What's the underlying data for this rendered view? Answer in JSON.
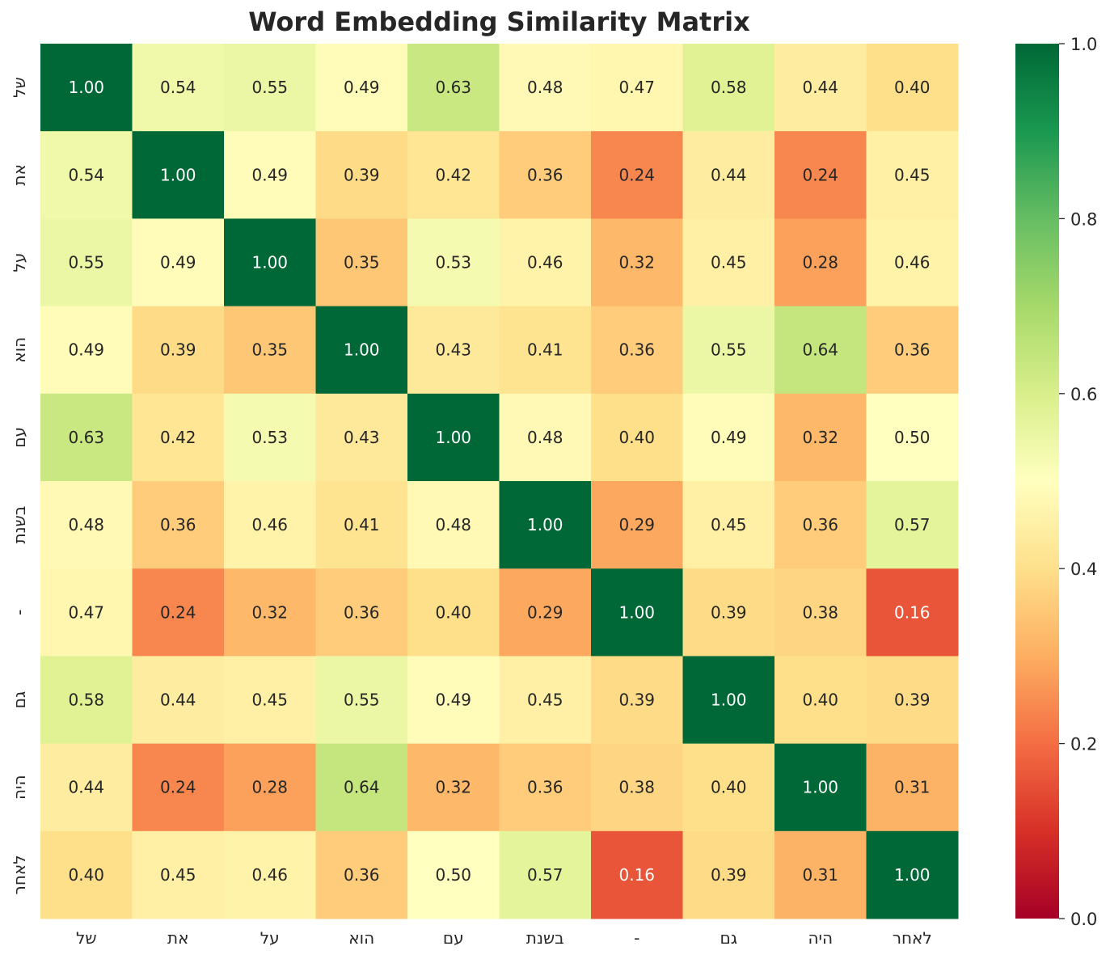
{
  "chart_data": {
    "type": "heatmap",
    "title": "Word Embedding Similarity Matrix",
    "labels": [
      "של",
      "את",
      "על",
      "הוא",
      "עם",
      "בשנת",
      "-",
      "גם",
      "היה",
      "לאחר"
    ],
    "matrix": [
      [
        1.0,
        0.54,
        0.55,
        0.49,
        0.63,
        0.48,
        0.47,
        0.58,
        0.44,
        0.4
      ],
      [
        0.54,
        1.0,
        0.49,
        0.39,
        0.42,
        0.36,
        0.24,
        0.44,
        0.24,
        0.45
      ],
      [
        0.55,
        0.49,
        1.0,
        0.35,
        0.53,
        0.46,
        0.32,
        0.45,
        0.28,
        0.46
      ],
      [
        0.49,
        0.39,
        0.35,
        1.0,
        0.43,
        0.41,
        0.36,
        0.55,
        0.64,
        0.36
      ],
      [
        0.63,
        0.42,
        0.53,
        0.43,
        1.0,
        0.48,
        0.4,
        0.49,
        0.32,
        0.5
      ],
      [
        0.48,
        0.36,
        0.46,
        0.41,
        0.48,
        1.0,
        0.29,
        0.45,
        0.36,
        0.57
      ],
      [
        0.47,
        0.24,
        0.32,
        0.36,
        0.4,
        0.29,
        1.0,
        0.39,
        0.38,
        0.16
      ],
      [
        0.58,
        0.44,
        0.45,
        0.55,
        0.49,
        0.45,
        0.39,
        1.0,
        0.4,
        0.39
      ],
      [
        0.44,
        0.24,
        0.28,
        0.64,
        0.32,
        0.36,
        0.38,
        0.4,
        1.0,
        0.31
      ],
      [
        0.4,
        0.45,
        0.46,
        0.36,
        0.5,
        0.57,
        0.16,
        0.39,
        0.31,
        1.0
      ]
    ],
    "value_format": "0.00",
    "colormap": "RdYlGn",
    "vmin": 0.0,
    "vmax": 1.0,
    "colorbar_ticks": [
      "0.0",
      "0.2",
      "0.4",
      "0.6",
      "0.8",
      "1.0"
    ],
    "colors": {
      "low": "#a50026",
      "mid": "#ffffbf",
      "high": "#006837",
      "text_dark": "#262626",
      "text_light": "#ffffff"
    }
  }
}
